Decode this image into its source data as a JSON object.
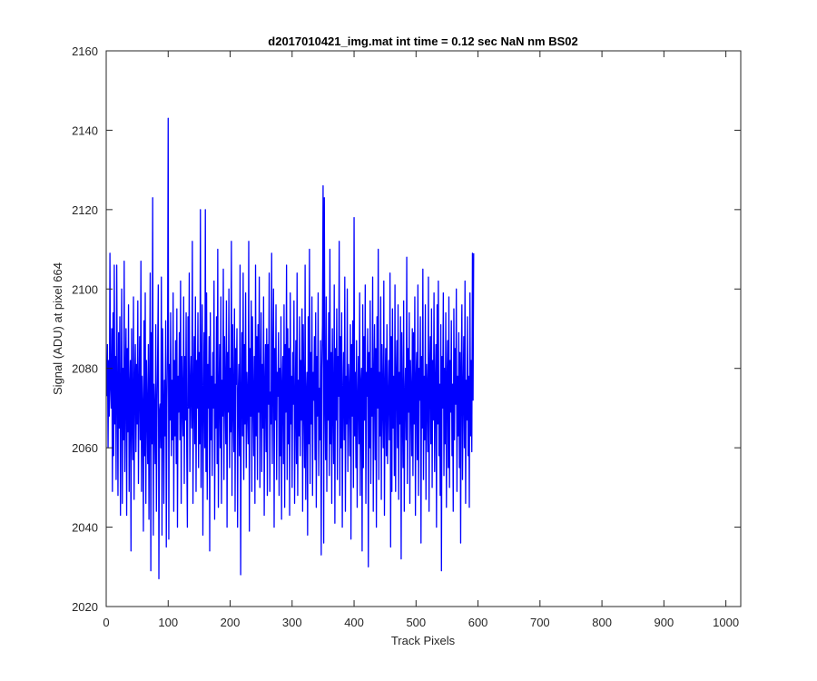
{
  "chart_data": {
    "type": "line",
    "title": "d2017010421_img.mat int time = 0.12 sec  NaN nm BS02",
    "xlabel": "Track Pixels",
    "ylabel": "Signal (ADU) at pixel 664",
    "xlim": [
      0,
      1024
    ],
    "ylim": [
      2020,
      2160
    ],
    "xticks": [
      0,
      100,
      200,
      300,
      400,
      500,
      600,
      700,
      800,
      900,
      1000
    ],
    "yticks": [
      2020,
      2040,
      2060,
      2080,
      2100,
      2120,
      2140,
      2160
    ],
    "grid": false,
    "line_color": "#0000ff",
    "series": [
      {
        "x_start": 1,
        "x_step": 1,
        "values": [
          2073,
          2086,
          2060,
          2082,
          2068,
          2109,
          2075,
          2070,
          2090,
          2049,
          2094,
          2058,
          2106,
          2066,
          2083,
          2052,
          2106,
          2074,
          2048,
          2089,
          2065,
          2093,
          2043,
          2073,
          2100,
          2046,
          2080,
          2062,
          2107,
          2054,
          2077,
          2090,
          2043,
          2085,
          2064,
          2096,
          2049,
          2075,
          2082,
          2034,
          2090,
          2068,
          2057,
          2098,
          2047,
          2076,
          2086,
          2059,
          2081,
          2066,
          2097,
          2051,
          2074,
          2088,
          2062,
          2107,
          2049,
          2078,
          2070,
          2039,
          2092,
          2058,
          2099,
          2046,
          2082,
          2070,
          2056,
          2086,
          2042,
          2074,
          2104,
          2029,
          2089,
          2061,
          2123,
          2038,
          2076,
          2069,
          2056,
          2091,
          2044,
          2069,
          2084,
          2101,
          2027,
          2069,
          2071,
          2060,
          2103,
          2038,
          2090,
          2073,
          2046,
          2077,
          2063,
          2092,
          2035,
          2072,
          2086,
          2143,
          2037,
          2081,
          2067,
          2094,
          2058,
          2077,
          2062,
          2099,
          2044,
          2082,
          2063,
          2087,
          2056,
          2095,
          2040,
          2078,
          2069,
          2089,
          2062,
          2102,
          2046,
          2083,
          2072,
          2063,
          2098,
          2051,
          2083,
          2067,
          2094,
          2059,
          2040,
          2093,
          2070,
          2104,
          2054,
          2075,
          2083,
          2065,
          2112,
          2046,
          2072,
          2088,
          2061,
          2098,
          2049,
          2082,
          2070,
          2094,
          2055,
          2084,
          2061,
          2120,
          2050,
          2077,
          2096,
          2038,
          2071,
          2089,
          2060,
          2120,
          2054,
          2099,
          2047,
          2081,
          2070,
          2088,
          2034,
          2094,
          2062,
          2078,
          2053,
          2084,
          2070,
          2102,
          2042,
          2076,
          2065,
          2093,
          2056,
          2110,
          2045,
          2073,
          2086,
          2060,
          2098,
          2046,
          2077,
          2068,
          2105,
          2052,
          2088,
          2075,
          2061,
          2097,
          2040,
          2084,
          2069,
          2100,
          2055,
          2080,
          2064,
          2112,
          2048,
          2091,
          2071,
          2059,
          2095,
          2044,
          2085,
          2076,
          2090,
          2040,
          2073,
          2081,
          2058,
          2106,
          2028,
          2071,
          2089,
          2063,
          2104,
          2052,
          2086,
          2066,
          2099,
          2055,
          2079,
          2071,
          2061,
          2112,
          2039,
          2085,
          2068,
          2097,
          2049,
          2093,
          2074,
          2058,
          2083,
          2046,
          2106,
          2063,
          2088,
          2052,
          2091,
          2069,
          2103,
          2050,
          2076,
          2094,
          2054,
          2081,
          2065,
          2098,
          2043,
          2075,
          2086,
          2059,
          2090,
          2048,
          2086,
          2071,
          2104,
          2049,
          2074,
          2066,
          2109,
          2056,
          2081,
          2100,
          2040,
          2085,
          2067,
          2096,
          2052,
          2079,
          2073,
          2089,
          2048,
          2080,
          2058,
          2093,
          2042,
          2075,
          2083,
          2056,
          2096,
          2045,
          2086,
          2069,
          2106,
          2052,
          2090,
          2061,
          2085,
          2043,
          2099,
          2066,
          2078,
          2050,
          2084,
          2071,
          2097,
          2046,
          2070,
          2087,
          2056,
          2104,
          2048,
          2077,
          2063,
          2093,
          2058,
          2082,
          2067,
          2095,
          2044,
          2091,
          2073,
          2055,
          2106,
          2047,
          2073,
          2079,
          2038,
          2093,
          2061,
          2110,
          2051,
          2084,
          2066,
          2098,
          2048,
          2079,
          2072,
          2088,
          2057,
          2094,
          2045,
          2083,
          2068,
          2099,
          2053,
          2075,
          2062,
          2087,
          2033,
          2080,
          2091,
          2126,
          2036,
          2123,
          2073,
          2057,
          2098,
          2049,
          2082,
          2067,
          2094,
          2053,
          2110,
          2061,
          2084,
          2046,
          2090,
          2071,
          2056,
          2101,
          2041,
          2085,
          2067,
          2095,
          2052,
          2083,
          2073,
          2112,
          2048,
          2088,
          2060,
          2094,
          2040,
          2073,
          2084,
          2062,
          2103,
          2044,
          2078,
          2066,
          2100,
          2054,
          2081,
          2074,
          2058,
          2091,
          2037,
          2086,
          2068,
          2092,
          2050,
          2118,
          2063,
          2079,
          2055,
          2087,
          2045,
          2072,
          2083,
          2061,
          2099,
          2048,
          2076,
          2080,
          2034,
          2096,
          2055,
          2088,
          2067,
          2101,
          2046,
          2079,
          2073,
          2090,
          2030,
          2084,
          2060,
          2097,
          2051,
          2080,
          2068,
          2103,
          2044,
          2077,
          2091,
          2057,
          2085,
          2040,
          2093,
          2070,
          2110,
          2052,
          2079,
          2063,
          2098,
          2047,
          2086,
          2072,
          2060,
          2102,
          2043,
          2074,
          2085,
          2058,
          2091,
          2056,
          2072,
          2082,
          2062,
          2104,
          2035,
          2088,
          2049,
          2095,
          2065,
          2078,
          2053,
          2101,
          2049,
          2077,
          2087,
          2060,
          2096,
          2047,
          2079,
          2066,
          2093,
          2032,
          2089,
          2070,
          2055,
          2097,
          2044,
          2073,
          2080,
          2062,
          2108,
          2051,
          2085,
          2069,
          2094,
          2046,
          2082,
          2074,
          2058,
          2090,
          2053,
          2089,
          2066,
          2098,
          2043,
          2077,
          2084,
          2057,
          2101,
          2048,
          2080,
          2072,
          2093,
          2036,
          2083,
          2065,
          2105,
          2052,
          2078,
          2062,
          2096,
          2047,
          2081,
          2074,
          2059,
          2103,
          2044,
          2079,
          2088,
          2061,
          2095,
          2050,
          2082,
          2067,
          2099,
          2054,
          2075,
          2086,
          2040,
          2096,
          2066,
          2102,
          2058,
          2076,
          2048,
          2091,
          2029,
          2083,
          2070,
          2099,
          2053,
          2080,
          2061,
          2094,
          2045,
          2077,
          2087,
          2055,
          2098,
          2050,
          2082,
          2069,
          2092,
          2058,
          2076,
          2044,
          2095,
          2062,
          2085,
          2071,
          2100,
          2049,
          2078,
          2063,
          2089,
          2055,
          2084,
          2036,
          2081,
          2096,
          2052,
          2073,
          2088,
          2060,
          2102,
          2046,
          2077,
          2067,
          2093,
          2058,
          2078,
          2045,
          2099,
          2063,
          2082,
          2059,
          2109,
          2072,
          2109
        ]
      }
    ]
  }
}
